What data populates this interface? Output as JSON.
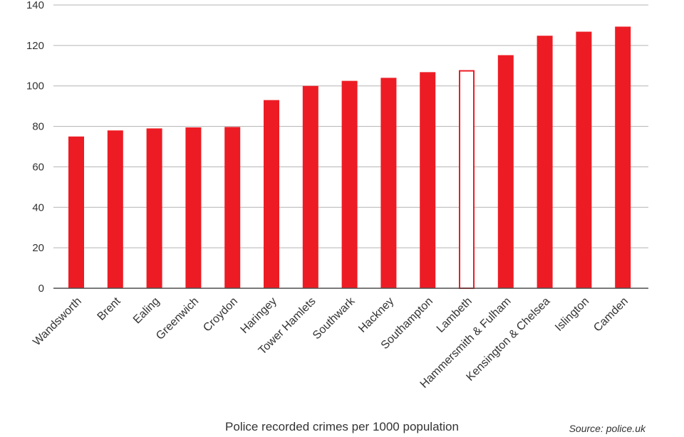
{
  "chart_data": {
    "type": "bar",
    "categories": [
      "Wandsworth",
      "Brent",
      "Ealing",
      "Greenwich",
      "Croydon",
      "Haringey",
      "Tower Hamlets",
      "Southwark",
      "Hackney",
      "Southampton",
      "Lambeth",
      "Hammersmith & Fulham",
      "Kensington & Chelsea",
      "Islington",
      "Camden"
    ],
    "values": [
      75,
      78,
      79,
      79.5,
      79.7,
      93,
      100,
      102.5,
      104,
      106.8,
      107.8,
      115.2,
      124.8,
      126.8,
      129.3
    ],
    "highlight": "Lambeth",
    "xlabel": "Police recorded crimes per 1000 population",
    "ylabel": "",
    "ylim": [
      0,
      140
    ],
    "yticks": [
      0,
      20,
      40,
      60,
      80,
      100,
      120,
      140
    ],
    "grid": true,
    "source": "Source: police.uk",
    "colors": {
      "bar": "#ed1c24",
      "highlight_outline": "#ed1c24",
      "highlight_fill": "#ffffff",
      "highlight_label": "#cc1018",
      "grid": "#b3b3b3",
      "axis": "#4d4d4d"
    }
  }
}
